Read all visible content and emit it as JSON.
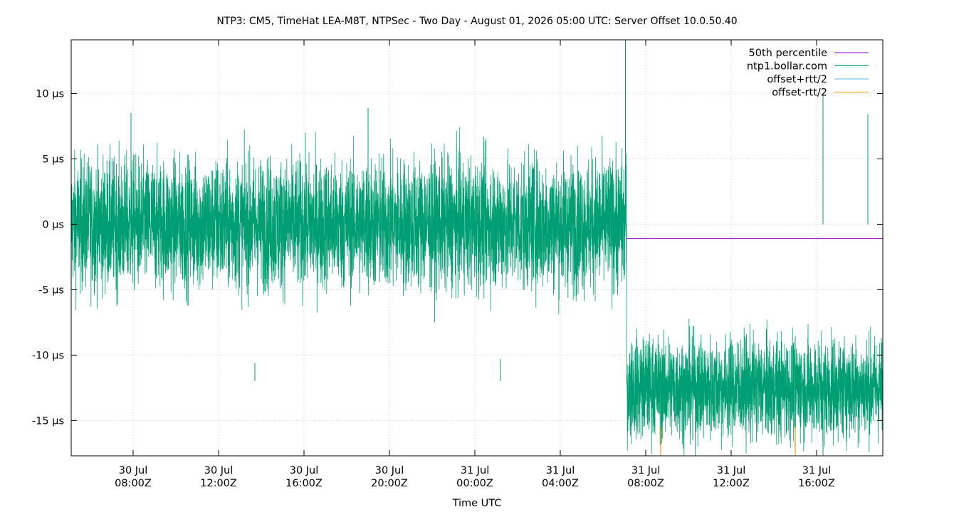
{
  "chart_data": {
    "type": "line",
    "title": "NTP3: CM5, TimeHat LEA-M8T, NTPSec - Two Day - August 01, 2026 05:00 UTC: Server Offset 10.0.50.40",
    "xlabel": "Time UTC",
    "ylabel": "",
    "x_unit": "hours",
    "x_range_hours": [
      0,
      38
    ],
    "ylim": [
      -17.7,
      14.1
    ],
    "grid": true,
    "legend_position": "top-right",
    "y_ticks": [
      {
        "value": 10,
        "label": "10 µs"
      },
      {
        "value": 5,
        "label": "5 µs"
      },
      {
        "value": 0,
        "label": "0 µs"
      },
      {
        "value": -5,
        "label": "-5 µs"
      },
      {
        "value": -10,
        "label": "-10 µs"
      },
      {
        "value": -15,
        "label": "-15 µs"
      }
    ],
    "x_ticks": [
      {
        "hour": 2.9,
        "date": "30 Jul",
        "time": "08:00Z"
      },
      {
        "hour": 6.9,
        "date": "30 Jul",
        "time": "12:00Z"
      },
      {
        "hour": 10.9,
        "date": "30 Jul",
        "time": "16:00Z"
      },
      {
        "hour": 14.9,
        "date": "30 Jul",
        "time": "20:00Z"
      },
      {
        "hour": 18.9,
        "date": "31 Jul",
        "time": "00:00Z"
      },
      {
        "hour": 22.9,
        "date": "31 Jul",
        "time": "04:00Z"
      },
      {
        "hour": 26.9,
        "date": "31 Jul",
        "time": "08:00Z"
      },
      {
        "hour": 30.9,
        "date": "31 Jul",
        "time": "12:00Z"
      },
      {
        "hour": 34.9,
        "date": "31 Jul",
        "time": "16:00Z"
      }
    ],
    "series": [
      {
        "name": "50th percentile",
        "color": "#9400d3",
        "kind": "hline",
        "value": -1.1
      },
      {
        "name": "ntp1.bollar.com",
        "color": "#009e73",
        "kind": "noise",
        "segments": [
          {
            "x_start": 0,
            "x_end": 26.0,
            "mean": 0.0,
            "spread": 4.5
          },
          {
            "x_start": 26.0,
            "x_end": 38,
            "mean": -12.5,
            "spread": 3.5
          }
        ],
        "spikes": [
          {
            "x": 2.8,
            "y": 8.5
          },
          {
            "x": 13.9,
            "y": 8.9
          },
          {
            "x": 25.95,
            "y": 14.1
          },
          {
            "x": 35.2,
            "y": -17.7
          },
          {
            "x": 35.2,
            "y": 10.0
          },
          {
            "x": 37.3,
            "y": 8.4
          },
          {
            "x": 8.6,
            "y": -10.6
          },
          {
            "x": 20.1,
            "y": -10.3
          },
          {
            "x": 29.1,
            "y": -16.5
          }
        ]
      },
      {
        "name": "offset+rtt/2",
        "color": "#56b4e9",
        "kind": "hidden"
      },
      {
        "name": "offset-rtt/2",
        "color": "#e69f00",
        "kind": "spikes",
        "points": [
          {
            "x": 27.6,
            "y": -17.7
          },
          {
            "x": 33.9,
            "y": -17.7
          }
        ]
      }
    ]
  }
}
